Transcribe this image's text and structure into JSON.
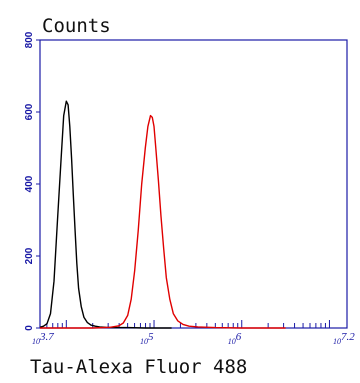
{
  "chart_data": {
    "type": "line",
    "ylabel": "Counts",
    "xlabel": "Tau-Alexa Fluor 488",
    "x_scale": "log",
    "xlim": [
      3.7,
      7.2
    ],
    "ylim": [
      0,
      800
    ],
    "yticks": [
      0,
      200,
      400,
      600,
      800
    ],
    "xticks": [
      {
        "pos": 3.7,
        "base": "10",
        "exp": "3.7"
      },
      {
        "pos": 5,
        "base": "10",
        "exp": "5"
      },
      {
        "pos": 6,
        "base": "10",
        "exp": "6"
      },
      {
        "pos": 7.2,
        "base": "10",
        "exp": "7.2"
      }
    ],
    "grid": false,
    "colors": {
      "axis": "#1a1aa6",
      "control": "#000000",
      "sample": "#e00000"
    },
    "series": [
      {
        "color": "#000000",
        "x": [
          3.7,
          3.74,
          3.78,
          3.82,
          3.86,
          3.9,
          3.94,
          3.97,
          4.0,
          4.02,
          4.04,
          4.06,
          4.08,
          4.1,
          4.12,
          4.14,
          4.17,
          4.2,
          4.24,
          4.28,
          4.33,
          4.38,
          4.45,
          4.55,
          4.7,
          4.9,
          5.2
        ],
        "y": [
          2,
          5,
          12,
          40,
          130,
          300,
          470,
          590,
          630,
          620,
          560,
          470,
          370,
          270,
          180,
          110,
          60,
          30,
          15,
          8,
          5,
          3,
          2,
          1,
          1,
          0,
          0
        ]
      },
      {
        "color": "#e00000",
        "x": [
          3.7,
          4.3,
          4.5,
          4.6,
          4.65,
          4.7,
          4.74,
          4.78,
          4.82,
          4.86,
          4.9,
          4.93,
          4.96,
          4.98,
          5.0,
          5.02,
          5.05,
          5.08,
          5.11,
          5.14,
          5.18,
          5.22,
          5.27,
          5.33,
          5.4,
          5.5,
          5.7,
          6.0,
          6.5
        ],
        "y": [
          0,
          0,
          2,
          6,
          14,
          35,
          80,
          160,
          270,
          400,
          500,
          560,
          590,
          585,
          560,
          500,
          410,
          310,
          220,
          140,
          80,
          40,
          20,
          10,
          5,
          3,
          1,
          0,
          0
        ]
      }
    ]
  }
}
